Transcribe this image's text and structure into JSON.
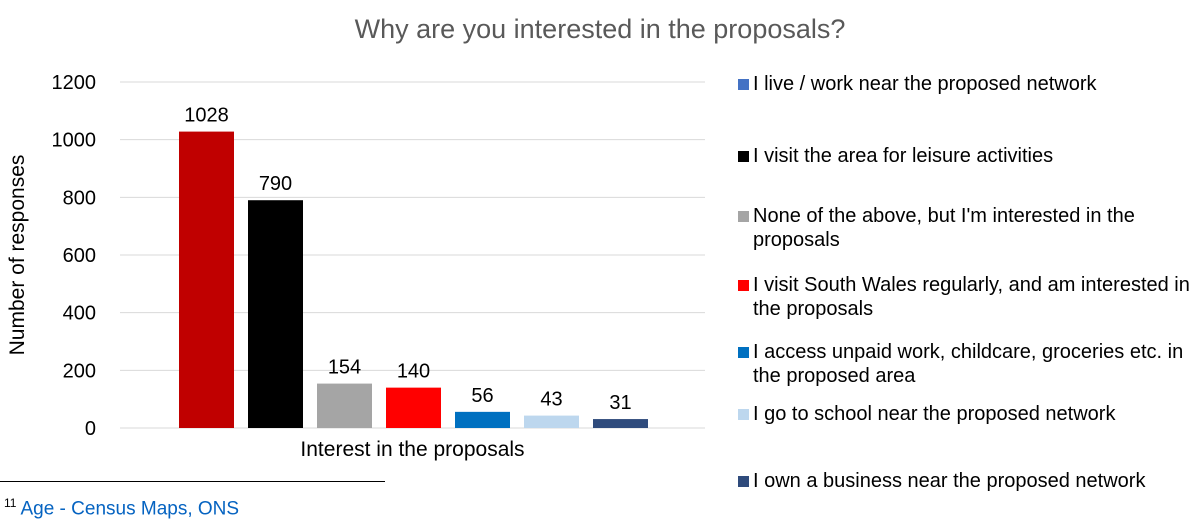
{
  "chart_data": {
    "type": "bar",
    "title": "Why are you interested in the proposals?",
    "xlabel": "Interest in the proposals",
    "ylabel": "Number of responses",
    "ylim": [
      0,
      1200
    ],
    "yticks": [
      0,
      200,
      400,
      600,
      800,
      1000,
      1200
    ],
    "grid": true,
    "legend_position": "right",
    "series": [
      {
        "name": "I live / work near the proposed network",
        "value": 1028,
        "color": "#c00000"
      },
      {
        "name": "I visit the area for leisure activities",
        "value": 790,
        "color": "#000000"
      },
      {
        "name": "None of the above, but I'm interested in the proposals",
        "value": 154,
        "color": "#a5a5a5"
      },
      {
        "name": "I visit South Wales regularly, and am interested in the proposals",
        "value": 140,
        "color": "#ff0000"
      },
      {
        "name": "I access unpaid work, childcare, groceries etc. in the proposed area",
        "value": 56,
        "color": "#0070c0"
      },
      {
        "name": "I go to school near the proposed network",
        "value": 43,
        "color": "#bdd7ee"
      },
      {
        "name": "I own a business near the proposed network",
        "value": 31,
        "color": "#2f4b7c"
      }
    ],
    "legend_colors": [
      "#4472c4",
      "#000000",
      "#a5a5a5",
      "#ff0000",
      "#0070c0",
      "#bdd7ee",
      "#2f4b7c"
    ]
  },
  "footnote": {
    "number": "11",
    "text": "Age - Census Maps, ONS"
  }
}
